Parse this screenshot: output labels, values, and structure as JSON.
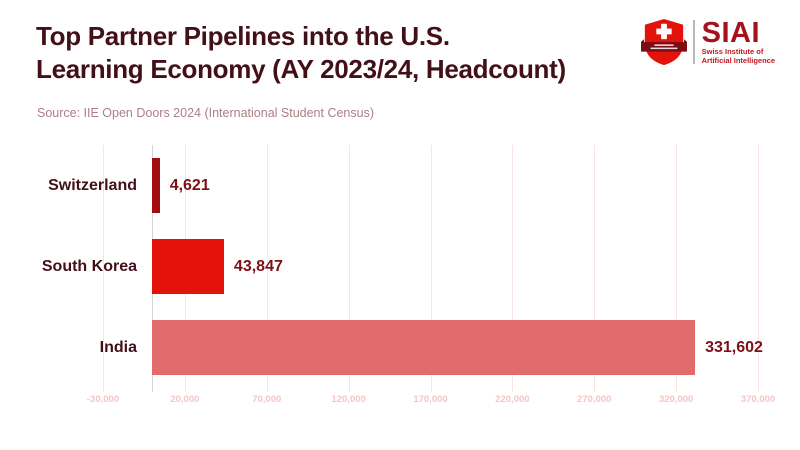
{
  "header": {
    "title_line1": "Top Partner Pipelines into the U.S.",
    "title_line2": "Learning Economy (AY 2023/24, Headcount)",
    "source": "Source: IIE Open Doors 2024 (International Student Census)"
  },
  "logo": {
    "name": "SIAI",
    "subtitle_line1": "Swiss Institute of",
    "subtitle_line2": "Artificial Intelligence",
    "shield_icon": "swiss-shield-icon",
    "brand_red": "#e3120b",
    "brand_dark_red": "#7a0e14",
    "wordmark_red": "#a6121c"
  },
  "chart_data": {
    "type": "bar",
    "orientation": "horizontal",
    "title": "Top Partner Pipelines into the U.S. Learning Economy (AY 2023/24, Headcount)",
    "source": "IIE Open Doors 2024 (International Student Census)",
    "categories": [
      "Switzerland",
      "South Korea",
      "India"
    ],
    "values": [
      4621,
      43847,
      331602
    ],
    "value_labels": [
      "4,621",
      "43,847",
      "331,602"
    ],
    "bar_colors": [
      "#a40d10",
      "#e3120b",
      "#e06c6c"
    ],
    "xlabel": "",
    "ylabel": "",
    "x_ticks": [
      -30000,
      20000,
      70000,
      120000,
      170000,
      220000,
      270000,
      320000,
      370000
    ],
    "x_tick_labels": [
      "-30,000",
      "20,000",
      "70,000",
      "120,000",
      "170,000",
      "220,000",
      "270,000",
      "320,000",
      "370,000"
    ],
    "xlim": [
      -60000,
      395000
    ],
    "grid": true,
    "legend": false,
    "grid_color": "#fae3e3",
    "zero_line_color": "#d6d6d6",
    "tick_label_color": "#f3c6c6",
    "category_label_color": "#421019",
    "value_label_color": "#7d1016"
  }
}
